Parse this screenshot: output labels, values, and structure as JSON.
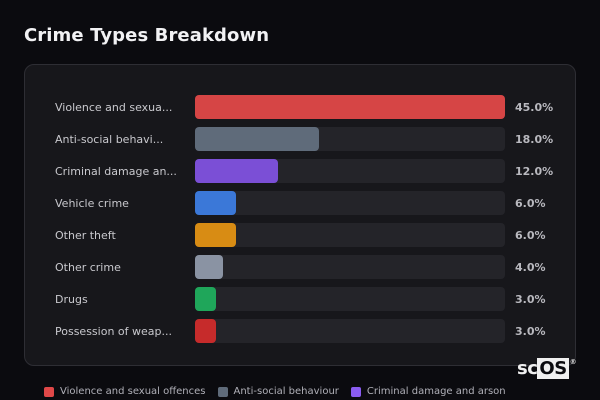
{
  "header": {
    "title": "Crime Types Breakdown"
  },
  "rows": [
    {
      "label": "Violence and sexua...",
      "value": "45.0%",
      "pct": 45.0,
      "color": "#d64545"
    },
    {
      "label": "Anti-social behavi...",
      "value": "18.0%",
      "pct": 18.0,
      "color": "#5f6b7a"
    },
    {
      "label": "Criminal damage an...",
      "value": "12.0%",
      "pct": 12.0,
      "color": "#7b4fd6"
    },
    {
      "label": "Vehicle crime",
      "value": "6.0%",
      "pct": 6.0,
      "color": "#3b78d8"
    },
    {
      "label": "Other theft",
      "value": "6.0%",
      "pct": 6.0,
      "color": "#d88c14"
    },
    {
      "label": "Other crime",
      "value": "4.0%",
      "pct": 4.0,
      "color": "#8a93a3"
    },
    {
      "label": "Drugs",
      "value": "3.0%",
      "pct": 3.0,
      "color": "#1fa65a"
    },
    {
      "label": "Possession of weap...",
      "value": "3.0%",
      "pct": 3.0,
      "color": "#c62b2b"
    }
  ],
  "legend": [
    {
      "label": "Violence and sexual offences",
      "color": "#e04848"
    },
    {
      "label": "Anti-social behaviour",
      "color": "#5f6b7a"
    },
    {
      "label": "Criminal damage and arson",
      "color": "#8a5cf0"
    }
  ],
  "logo": {
    "sc": "sc",
    "os": "OS",
    "reg": "®"
  },
  "chart_data": {
    "type": "bar",
    "orientation": "horizontal",
    "title": "Crime Types Breakdown",
    "categories": [
      "Violence and sexual offences",
      "Anti-social behaviour",
      "Criminal damage and arson",
      "Vehicle crime",
      "Other theft",
      "Other crime",
      "Drugs",
      "Possession of weapons"
    ],
    "display_labels": [
      "Violence and sexua...",
      "Anti-social behavi...",
      "Criminal damage an...",
      "Vehicle crime",
      "Other theft",
      "Other crime",
      "Drugs",
      "Possession of weap..."
    ],
    "values": [
      45.0,
      18.0,
      12.0,
      6.0,
      6.0,
      4.0,
      3.0,
      3.0
    ],
    "unit": "%",
    "colors": [
      "#d64545",
      "#5f6b7a",
      "#7b4fd6",
      "#3b78d8",
      "#d88c14",
      "#8a93a3",
      "#1fa65a",
      "#c62b2b"
    ],
    "xlabel": "",
    "ylabel": "",
    "xlim": [
      0,
      45
    ],
    "grid": false,
    "legend": {
      "position": "bottom",
      "entries": [
        "Violence and sexual offences",
        "Anti-social behaviour",
        "Criminal damage and arson"
      ]
    }
  }
}
